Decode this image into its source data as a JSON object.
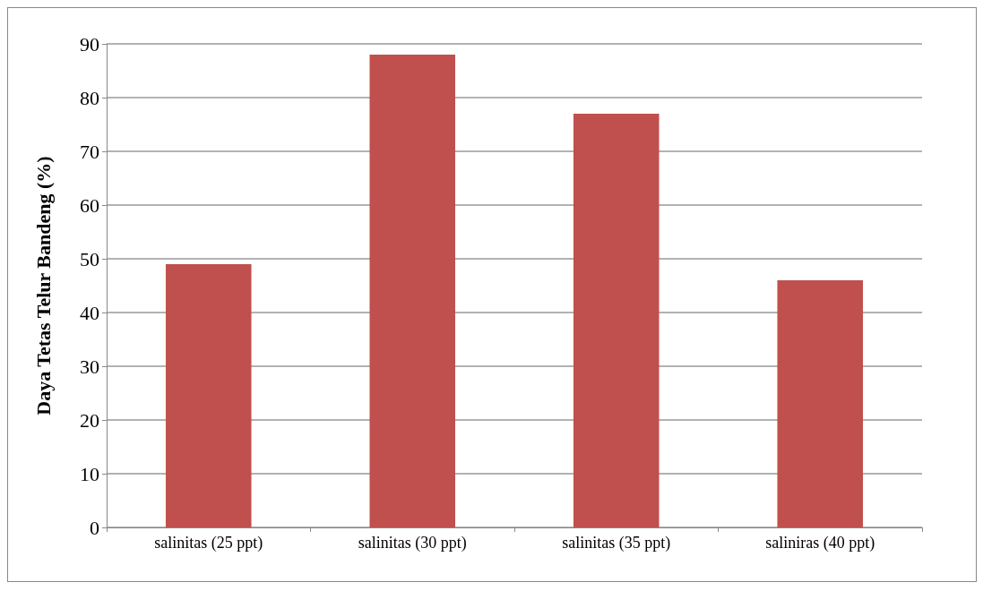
{
  "chart_data": {
    "type": "bar",
    "ylabel": "Daya Tetas Telur Bandeng (%)",
    "categories": [
      "salinitas (25 ppt)",
      "salinitas (30 ppt)",
      "salinitas (35 ppt)",
      "saliniras (40 ppt)"
    ],
    "values": [
      49,
      88,
      77,
      46
    ],
    "color": "#c0504d",
    "ylim": [
      0,
      90
    ],
    "yticks": [
      0,
      10,
      20,
      30,
      40,
      50,
      60,
      70,
      80,
      90
    ],
    "grid": "y"
  }
}
